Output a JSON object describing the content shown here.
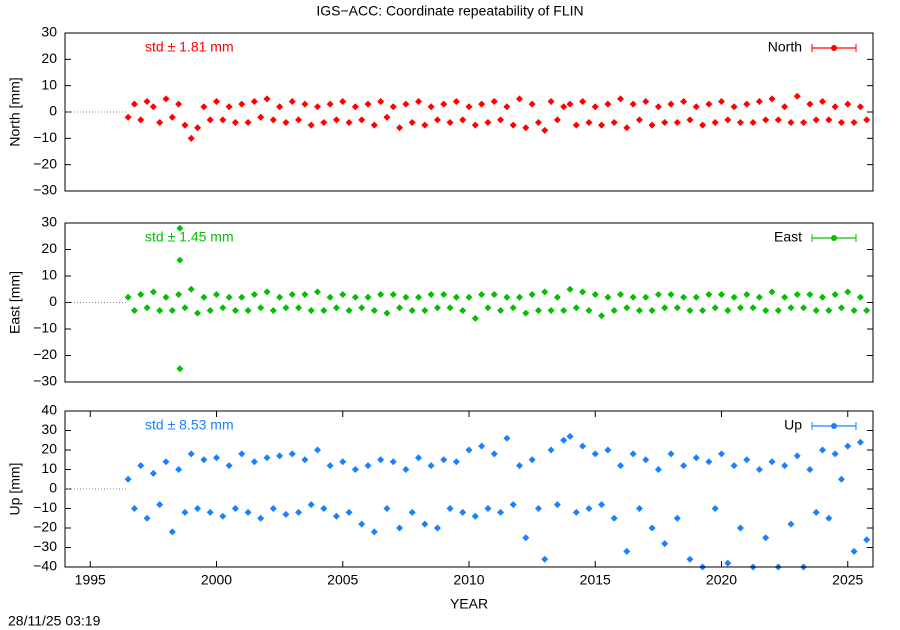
{
  "title": "IGS−ACC: Coordinate repeatability of FLIN",
  "timestamp": "28/11/25 03:19",
  "chart_data": [
    {
      "type": "scatter",
      "ylabel": "North [mm]",
      "annotation": "std ± 1.81 mm",
      "legend": "top-right",
      "xlim": [
        1994,
        2026
      ],
      "ylim": [
        -30,
        30
      ],
      "yticks": [
        {
          "value": -30,
          "label": "−30"
        },
        {
          "value": -20,
          "label": "−20"
        },
        {
          "value": -10,
          "label": "−10"
        },
        0,
        10,
        20,
        30
      ],
      "series": [
        {
          "name": "North",
          "color": "#ff0000",
          "x": [
            1996.5,
            1996.75,
            1997,
            1997.25,
            1997.5,
            1997.75,
            1998,
            1998.25,
            1998.5,
            1998.75,
            1999,
            1999.25,
            1999.5,
            1999.75,
            2000,
            2000.25,
            2000.5,
            2000.75,
            2001,
            2001.25,
            2001.5,
            2001.75,
            2002,
            2002.25,
            2002.5,
            2002.75,
            2003,
            2003.25,
            2003.5,
            2003.75,
            2004,
            2004.25,
            2004.5,
            2004.75,
            2005,
            2005.25,
            2005.5,
            2005.75,
            2006,
            2006.25,
            2006.5,
            2006.75,
            2007,
            2007.25,
            2007.5,
            2007.75,
            2008,
            2008.25,
            2008.5,
            2008.75,
            2009,
            2009.25,
            2009.5,
            2009.75,
            2010,
            2010.25,
            2010.5,
            2010.75,
            2011,
            2011.25,
            2011.5,
            2011.75,
            2012,
            2012.25,
            2012.5,
            2012.75,
            2013,
            2013.25,
            2013.5,
            2013.75,
            2014,
            2014.25,
            2014.5,
            2014.75,
            2015,
            2015.25,
            2015.5,
            2015.75,
            2016,
            2016.25,
            2016.5,
            2016.75,
            2017,
            2017.25,
            2017.5,
            2017.75,
            2018,
            2018.25,
            2018.5,
            2018.75,
            2019,
            2019.25,
            2019.5,
            2019.75,
            2020,
            2020.25,
            2020.5,
            2020.75,
            2021,
            2021.25,
            2021.5,
            2021.75,
            2022,
            2022.25,
            2022.5,
            2022.75,
            2023,
            2023.25,
            2023.5,
            2023.75,
            2024,
            2024.25,
            2024.5,
            2024.75,
            2025,
            2025.25,
            2025.5,
            2025.75
          ],
          "values": [
            -2,
            3,
            -3,
            4,
            2,
            -4,
            5,
            -2,
            3,
            -5,
            -10,
            -6,
            2,
            -3,
            4,
            -3,
            2,
            -4,
            3,
            -4,
            4,
            -2,
            5,
            -3,
            2,
            -4,
            4,
            -3,
            3,
            -5,
            2,
            -4,
            3,
            -3,
            4,
            -4,
            2,
            -3,
            3,
            -5,
            4,
            -2,
            2,
            -6,
            3,
            -4,
            4,
            -5,
            2,
            -3,
            3,
            -4,
            4,
            -3,
            2,
            -5,
            3,
            -4,
            4,
            -3,
            2,
            -5,
            5,
            -6,
            3,
            -4,
            -7,
            4,
            -3,
            2,
            3,
            -5,
            4,
            -4,
            2,
            -5,
            3,
            -4,
            5,
            -6,
            3,
            -3,
            4,
            -5,
            2,
            -4,
            3,
            -4,
            4,
            -3,
            2,
            -5,
            3,
            -4,
            4,
            -3,
            2,
            -4,
            3,
            -4,
            4,
            -3,
            5,
            -3,
            2,
            -4,
            6,
            -4,
            3,
            -3,
            4,
            -3,
            2,
            -4,
            3,
            -4,
            2,
            -3
          ]
        }
      ]
    },
    {
      "type": "scatter",
      "ylabel": "East [mm]",
      "annotation": "std ± 1.45 mm",
      "legend": "top-right",
      "xlim": [
        1994,
        2026
      ],
      "ylim": [
        -30,
        30
      ],
      "yticks": [
        {
          "value": -30,
          "label": "−30"
        },
        {
          "value": -20,
          "label": "−20"
        },
        {
          "value": -10,
          "label": "−10"
        },
        0,
        10,
        20,
        30
      ],
      "series": [
        {
          "name": "East",
          "color": "#00c000",
          "x": [
            1996.5,
            1996.75,
            1997,
            1997.25,
            1997.5,
            1997.75,
            1998,
            1998.25,
            1998.5,
            1998.75,
            1999,
            1999.25,
            1999.5,
            1999.75,
            2000,
            2000.25,
            2000.5,
            2000.75,
            2001,
            2001.25,
            2001.5,
            2001.75,
            2002,
            2002.25,
            2002.5,
            2002.75,
            2003,
            2003.25,
            2003.5,
            2003.75,
            2004,
            2004.25,
            2004.5,
            2004.75,
            2005,
            2005.25,
            2005.5,
            2005.75,
            2006,
            2006.25,
            2006.5,
            2006.75,
            2007,
            2007.25,
            2007.5,
            2007.75,
            2008,
            2008.25,
            2008.5,
            2008.75,
            2009,
            2009.25,
            2009.5,
            2009.75,
            2010,
            2010.25,
            2010.5,
            2010.75,
            2011,
            2011.25,
            2011.5,
            2011.75,
            2012,
            2012.25,
            2012.5,
            2012.75,
            2013,
            2013.25,
            2013.5,
            2013.75,
            2014,
            2014.25,
            2014.5,
            2014.75,
            2015,
            2015.25,
            2015.5,
            2015.75,
            2016,
            2016.25,
            2016.5,
            2016.75,
            2017,
            2017.25,
            2017.5,
            2017.75,
            2018,
            2018.25,
            2018.5,
            2018.75,
            2019,
            2019.25,
            2019.5,
            2019.75,
            2020,
            2020.25,
            2020.5,
            2020.75,
            2021,
            2021.25,
            2021.5,
            2021.75,
            2022,
            2022.25,
            2022.5,
            2022.75,
            2023,
            2023.25,
            2023.5,
            2023.75,
            2024,
            2024.25,
            2024.5,
            2024.75,
            2025,
            2025.25,
            2025.5,
            2025.75,
            1998.55,
            1998.55,
            1998.55
          ],
          "values": [
            2,
            -3,
            3,
            -2,
            4,
            -3,
            2,
            -3,
            3,
            -2,
            5,
            -4,
            2,
            -3,
            3,
            -2,
            2,
            -3,
            2,
            -3,
            3,
            -2,
            4,
            -3,
            2,
            -2,
            3,
            -2,
            3,
            -3,
            4,
            -3,
            2,
            -2,
            3,
            -3,
            2,
            -2,
            2,
            -3,
            3,
            -4,
            3,
            -2,
            2,
            -3,
            2,
            -3,
            3,
            -2,
            3,
            -2,
            2,
            -3,
            2,
            -6,
            3,
            -2,
            3,
            -3,
            2,
            -2,
            2,
            -4,
            3,
            -3,
            4,
            -3,
            2,
            -3,
            5,
            -2,
            4,
            -3,
            3,
            -5,
            2,
            -3,
            3,
            -2,
            2,
            -3,
            2,
            -3,
            3,
            -2,
            3,
            -2,
            2,
            -3,
            2,
            -3,
            3,
            -2,
            3,
            -3,
            2,
            -2,
            3,
            -2,
            2,
            -3,
            4,
            -3,
            2,
            -2,
            3,
            -2,
            3,
            -3,
            2,
            -3,
            3,
            -2,
            4,
            -3,
            2,
            -3,
            28,
            16,
            -25
          ]
        }
      ]
    },
    {
      "type": "scatter",
      "ylabel": "Up [mm]",
      "xlabel": "YEAR",
      "annotation": "std ± 8.53 mm",
      "legend": "top-right",
      "xlim": [
        1994,
        2026
      ],
      "ylim": [
        -40,
        40
      ],
      "xticks": [
        1995,
        2000,
        2005,
        2010,
        2015,
        2020,
        2025
      ],
      "yticks": [
        {
          "value": -40,
          "label": "−40"
        },
        {
          "value": -30,
          "label": "−30"
        },
        {
          "value": -20,
          "label": "−20"
        },
        {
          "value": -10,
          "label": "−10"
        },
        0,
        10,
        20,
        30,
        40
      ],
      "series": [
        {
          "name": "Up",
          "color": "#1a80ff",
          "x": [
            1996.5,
            1996.75,
            1997,
            1997.25,
            1997.5,
            1997.75,
            1998,
            1998.25,
            1998.5,
            1998.75,
            1999,
            1999.25,
            1999.5,
            1999.75,
            2000,
            2000.25,
            2000.5,
            2000.75,
            2001,
            2001.25,
            2001.5,
            2001.75,
            2002,
            2002.25,
            2002.5,
            2002.75,
            2003,
            2003.25,
            2003.5,
            2003.75,
            2004,
            2004.25,
            2004.5,
            2004.75,
            2005,
            2005.25,
            2005.5,
            2005.75,
            2006,
            2006.25,
            2006.5,
            2006.75,
            2007,
            2007.25,
            2007.5,
            2007.75,
            2008,
            2008.25,
            2008.5,
            2008.75,
            2009,
            2009.25,
            2009.5,
            2009.75,
            2010,
            2010.25,
            2010.5,
            2010.75,
            2011,
            2011.25,
            2011.5,
            2011.75,
            2012,
            2012.25,
            2012.5,
            2012.75,
            2013,
            2013.25,
            2013.5,
            2013.75,
            2014,
            2014.25,
            2014.5,
            2014.75,
            2015,
            2015.25,
            2015.5,
            2015.75,
            2016,
            2016.25,
            2016.5,
            2016.75,
            2017,
            2017.25,
            2017.5,
            2017.75,
            2018,
            2018.25,
            2018.5,
            2018.75,
            2019,
            2019.25,
            2019.5,
            2019.75,
            2020,
            2020.25,
            2020.5,
            2020.75,
            2021,
            2021.25,
            2021.5,
            2021.75,
            2022,
            2022.25,
            2022.5,
            2022.75,
            2023,
            2023.25,
            2023.5,
            2023.75,
            2024,
            2024.25,
            2024.5,
            2024.75,
            2025,
            2025.25,
            2025.5,
            2025.75
          ],
          "values": [
            5,
            -10,
            12,
            -15,
            8,
            -8,
            14,
            -22,
            10,
            -12,
            18,
            -10,
            15,
            -12,
            16,
            -14,
            12,
            -10,
            18,
            -12,
            14,
            -15,
            16,
            -10,
            17,
            -13,
            18,
            -12,
            15,
            -8,
            20,
            -10,
            12,
            -14,
            14,
            -12,
            10,
            -18,
            12,
            -22,
            15,
            -10,
            14,
            -20,
            10,
            -12,
            16,
            -18,
            12,
            -20,
            15,
            -10,
            14,
            -12,
            20,
            -14,
            22,
            -10,
            18,
            -12,
            26,
            -8,
            12,
            -25,
            15,
            -10,
            -36,
            20,
            -8,
            25,
            27,
            -12,
            22,
            -10,
            18,
            -8,
            20,
            -15,
            12,
            -32,
            18,
            -10,
            15,
            -20,
            10,
            -28,
            18,
            -15,
            12,
            -36,
            16,
            -40,
            14,
            -10,
            18,
            -38,
            12,
            -20,
            15,
            -40,
            10,
            -25,
            14,
            -40,
            12,
            -18,
            17,
            -40,
            10,
            -12,
            20,
            -15,
            18,
            5,
            22,
            -32,
            24,
            -26
          ]
        }
      ]
    }
  ]
}
